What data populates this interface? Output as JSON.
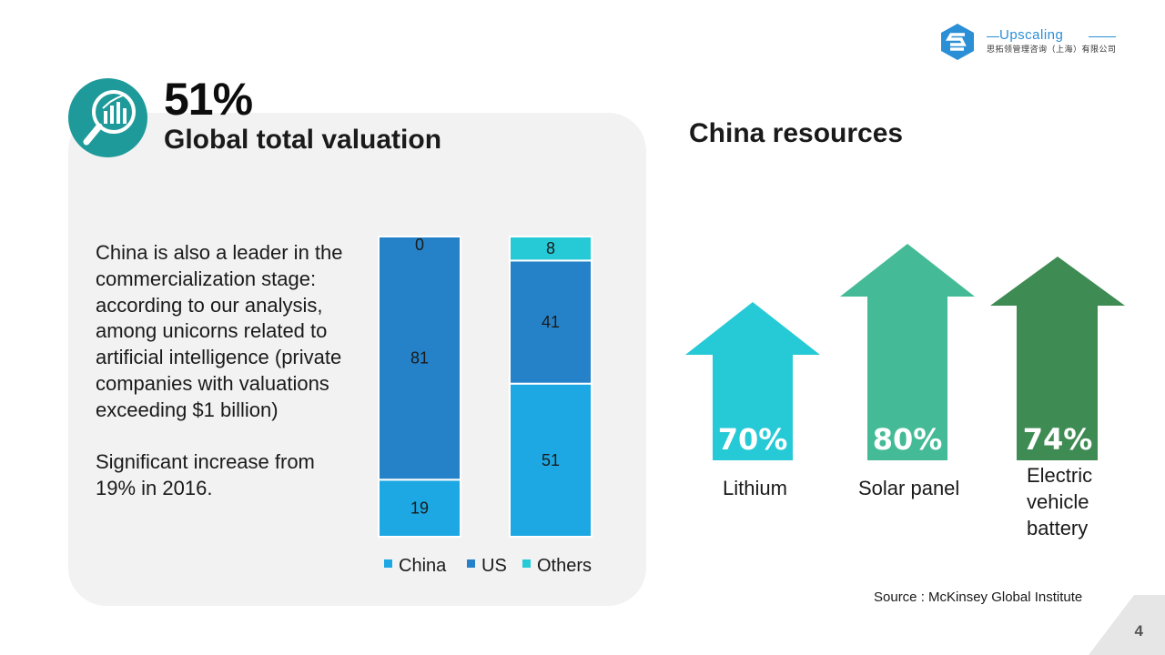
{
  "header": {
    "logo_name": "Upscaling",
    "logo_subtitle": "思拓领管理咨询（上海）有限公司"
  },
  "left_panel": {
    "big_value": "51%",
    "title": "Global total valuation",
    "badge_icon": "magnifier-chart-icon",
    "paragraph_1": "China is also a leader in the commercialization stage: according to our analysis, among unicorns related to artificial intelligence (private companies with valuations exceeding $1 billion)",
    "paragraph_2": "Significant increase from 19% in 2016."
  },
  "right_panel": {
    "title": "China resources",
    "items": [
      {
        "value": "70%",
        "label": "Lithium",
        "color": "#26cad6"
      },
      {
        "value": "80%",
        "label": "Solar panel",
        "color": "#44bb96"
      },
      {
        "value": "74%",
        "label": "Electric vehicle battery",
        "color": "#3f8b54"
      }
    ]
  },
  "footer": {
    "source": "Source : McKinsey Global Institute",
    "page_number": "4"
  },
  "chart_data": {
    "type": "bar",
    "stacked": true,
    "categories": [
      "",
      ""
    ],
    "series": [
      {
        "name": "China",
        "color": "#1da8e3",
        "values": [
          19,
          51
        ]
      },
      {
        "name": "US",
        "color": "#2682c8",
        "values": [
          81,
          41
        ]
      },
      {
        "name": "Others",
        "color": "#26cad6",
        "values": [
          0,
          8
        ]
      }
    ],
    "ylim": [
      0,
      100
    ],
    "legend": "bottom",
    "grid": false
  }
}
